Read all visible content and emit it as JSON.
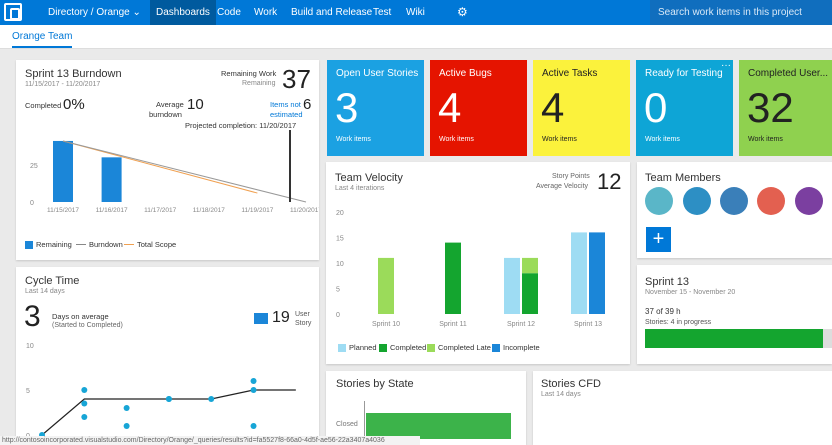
{
  "topbar": {
    "project": "Directory / Orange",
    "nav": [
      "Dashboards",
      "Code",
      "Work",
      "Build and Release",
      "Test",
      "Wiki"
    ],
    "search_placeholder": "Search work items in this project"
  },
  "subbar": {
    "team": "Orange Team"
  },
  "burndown": {
    "title": "Sprint 13 Burndown",
    "dates": "11/15/2017 - 11/20/2017",
    "remaining_label": "Remaining Work",
    "remaining_sub": "Remaining",
    "remaining_value": "37",
    "completed_label": "Completed",
    "completed_value": "0%",
    "avg_label1": "Average",
    "avg_label2": "burndown",
    "avg_value": "10",
    "items_not_label1": "Items not",
    "items_not_label2": "estimated",
    "items_not_value": "6",
    "projected": "Projected completion: 11/20/2017",
    "legend": [
      "Remaining",
      "Burndown",
      "Total Scope"
    ]
  },
  "burndown_chart": {
    "type": "bar",
    "categories": [
      "11/15/2017",
      "11/16/2017",
      "11/17/2017",
      "11/18/2017",
      "11/19/2017",
      "11/20/2017"
    ],
    "yticks": [
      "0",
      "25"
    ],
    "remaining": [
      41,
      30,
      null,
      null,
      null,
      null
    ],
    "burndown_line": [
      [
        0,
        41
      ],
      [
        5,
        0
      ]
    ],
    "total_scope_line": [
      [
        0,
        41
      ],
      [
        4,
        6
      ]
    ]
  },
  "queries": [
    {
      "title": "Open User Stories",
      "value": "3",
      "caption": "Work items",
      "color": "#1ba1e2",
      "text": "#fff"
    },
    {
      "title": "Active Bugs",
      "value": "4",
      "caption": "Work items",
      "color": "#e51400",
      "text": "#fff"
    },
    {
      "title": "Active Tasks",
      "value": "4",
      "caption": "Work items",
      "color": "#fbf23c",
      "text": "#222"
    },
    {
      "title": "Ready for Testing",
      "value": "0",
      "caption": "Work items",
      "color": "#0ea5d6",
      "text": "#fff"
    },
    {
      "title": "Completed User...",
      "value": "32",
      "caption": "Work items",
      "color": "#8fd14f",
      "text": "#222"
    }
  ],
  "velocity": {
    "title": "Team Velocity",
    "sub": "Last 4 iterations",
    "sp_label1": "Story Points",
    "sp_label2": "Average Velocity",
    "sp_value": "12",
    "legend": [
      "Planned",
      "Completed",
      "Completed Late",
      "Incomplete"
    ],
    "colors": {
      "planned": "#9edcf3",
      "completed": "#14a52f",
      "completed_late": "#9bdb5a",
      "incomplete": "#1b86d8"
    }
  },
  "chart_data": {
    "type": "bar",
    "categories": [
      "Sprint 10",
      "Sprint 11",
      "Sprint 12",
      "Sprint 13"
    ],
    "yticks": [
      "0",
      "5",
      "10",
      "15",
      "20"
    ],
    "ylim": [
      0,
      20
    ],
    "series": [
      {
        "name": "Planned",
        "values": [
          0,
          0,
          11,
          16
        ]
      },
      {
        "name": "Completed",
        "values": [
          0,
          14,
          8,
          0
        ]
      },
      {
        "name": "Completed Late",
        "values": [
          11,
          0,
          3,
          0
        ]
      },
      {
        "name": "Incomplete",
        "values": [
          0,
          0,
          0,
          16
        ]
      }
    ]
  },
  "members": {
    "title": "Team Members",
    "add_label": "+"
  },
  "sprint": {
    "title": "Sprint 13",
    "dates": "November 15 - November 20",
    "hours": "37 of 39 h",
    "stories": "Stories: 4 in progress",
    "progress": 0.95
  },
  "cycle": {
    "title": "Cycle Time",
    "sub": "Last 14 days",
    "days_value": "3",
    "days_label1": "Days on average",
    "days_label2": "(Started to Completed)",
    "story_value": "19",
    "story_label1": "User",
    "story_label2": "Story",
    "yticks": [
      "0",
      "5",
      "10"
    ]
  },
  "cycle_chart": {
    "type": "scatter",
    "ylim": [
      0,
      10
    ],
    "points": [
      [
        0,
        0
      ],
      [
        1,
        5
      ],
      [
        1,
        3.5
      ],
      [
        1,
        2
      ],
      [
        2,
        3
      ],
      [
        2,
        1
      ],
      [
        3,
        4
      ],
      [
        3,
        4
      ],
      [
        4,
        4
      ],
      [
        5,
        5
      ],
      [
        5,
        6
      ],
      [
        5,
        1
      ]
    ],
    "line": [
      [
        0,
        0
      ],
      [
        1,
        4
      ],
      [
        2,
        4
      ],
      [
        3,
        4
      ],
      [
        4,
        4
      ],
      [
        5,
        5
      ],
      [
        6,
        5
      ]
    ]
  },
  "states": {
    "title": "Stories by State",
    "row": "Closed"
  },
  "cfd": {
    "title": "Stories CFD",
    "sub": "Last 14 days"
  },
  "status_url": "http://contosoincorporated.visualstudio.com/Directory/Orange/_queries/results?id=fa5527f8-66a0-4d5f-ae56-22a3407a4036"
}
